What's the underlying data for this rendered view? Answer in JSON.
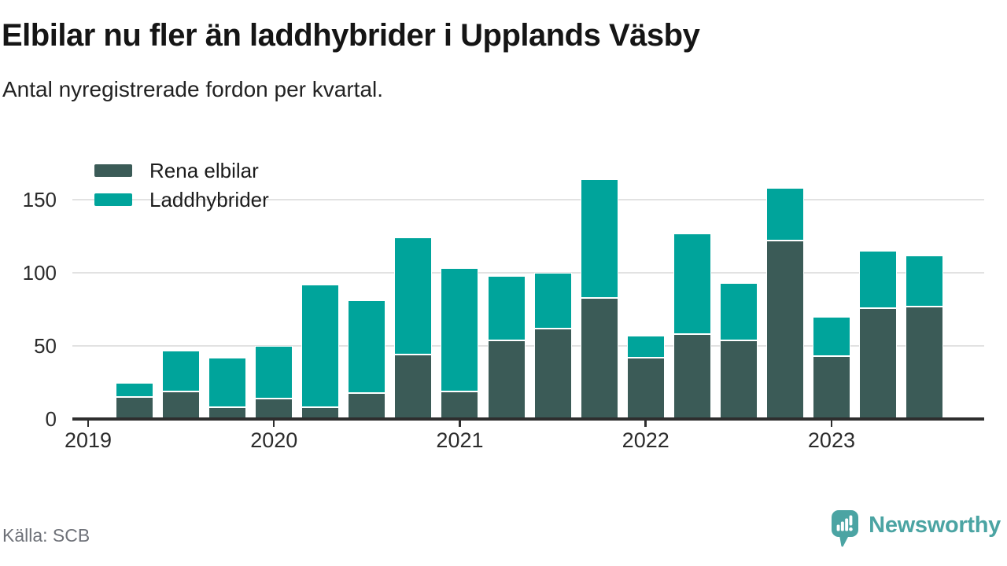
{
  "header": {
    "title": "Elbilar nu fler än laddhybrider i Upplands Väsby",
    "subtitle": "Antal nyregistrerade fordon per kvartal."
  },
  "footer": {
    "source_label": "Källa: SCB",
    "brand": "Newsworthy"
  },
  "colors": {
    "electric_dark_teal": "#3b5b57",
    "hybrid_bright_teal": "#00a49b",
    "brand_teal": "#4ba4a3",
    "gridline": "#e2e2e2",
    "axis": "#2e2e2e",
    "muted_text": "#6e7178"
  },
  "chart_data": {
    "type": "bar",
    "stacked": true,
    "title": "Elbilar nu fler än laddhybrider i Upplands Väsby",
    "subtitle": "Antal nyregistrerade fordon per kvartal.",
    "categories": [
      "2019 Q2",
      "2019 Q3",
      "2019 Q4",
      "2020 Q1",
      "2020 Q2",
      "2020 Q3",
      "2020 Q4",
      "2021 Q1",
      "2021 Q2",
      "2021 Q3",
      "2021 Q4",
      "2022 Q1",
      "2022 Q2",
      "2022 Q3",
      "2022 Q4",
      "2023 Q1",
      "2023 Q2",
      "2023 Q3"
    ],
    "series": [
      {
        "name": "Rena elbilar",
        "color": "#3b5b57",
        "values": [
          15,
          19,
          8,
          14,
          8,
          18,
          44,
          19,
          54,
          62,
          83,
          42,
          58,
          54,
          122,
          43,
          76,
          77
        ]
      },
      {
        "name": "Laddhybrider",
        "color": "#00a49b",
        "values": [
          10,
          28,
          34,
          36,
          84,
          63,
          80,
          84,
          44,
          38,
          81,
          15,
          69,
          39,
          36,
          27,
          39,
          35
        ]
      }
    ],
    "totals": [
      25,
      47,
      42,
      50,
      92,
      81,
      124,
      103,
      98,
      100,
      164,
      57,
      127,
      93,
      158,
      70,
      115,
      112
    ],
    "x_tick_labels": [
      "2019",
      "2020",
      "2021",
      "2022",
      "2023"
    ],
    "y_ticks": [
      0,
      50,
      100,
      150
    ],
    "ylim": [
      0,
      188
    ],
    "grid": "horizontal",
    "legend_position": "top-left",
    "xlabel": "",
    "ylabel": ""
  }
}
